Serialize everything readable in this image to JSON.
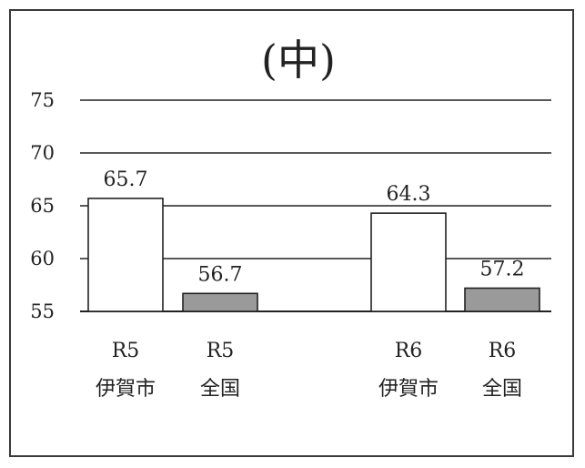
{
  "chart_data": {
    "type": "bar",
    "title": "(中)",
    "categories": [
      {
        "line1": "R5",
        "line2": "伊賀市"
      },
      {
        "line1": "R5",
        "line2": "全国"
      },
      {
        "line1": "R6",
        "line2": "伊賀市"
      },
      {
        "line1": "R6",
        "line2": "全国"
      }
    ],
    "values": [
      65.7,
      56.7,
      64.3,
      57.2
    ],
    "value_labels": [
      "65.7",
      "56.7",
      "64.3",
      "57.2"
    ],
    "ylim": [
      55,
      75
    ],
    "yticks": [
      "55",
      "60",
      "65",
      "70",
      "75"
    ],
    "grid": true,
    "colors": {
      "city_bar": "#ffffff",
      "national_bar": "#9a9a9a",
      "line": "#222222"
    }
  }
}
